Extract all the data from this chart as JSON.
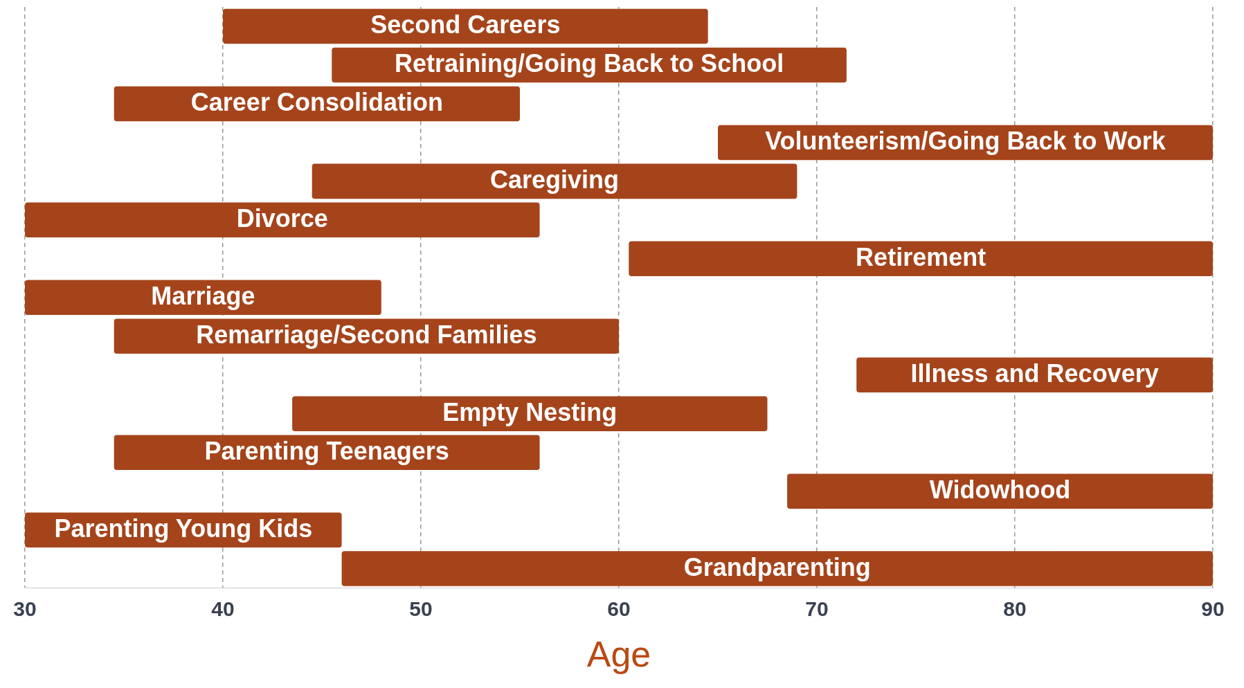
{
  "chart_data": {
    "type": "bar",
    "orientation": "horizontal",
    "xlabel": "Age",
    "categories": [
      "Second Careers",
      "Retraining/Going Back to School",
      "Career Consolidation",
      "Volunteerism/Going Back to Work",
      "Caregiving",
      "Divorce",
      "Retirement",
      "Marriage",
      "Remarriage/Second Families",
      "Illness and Recovery",
      "Empty Nesting",
      "Parenting Teenagers",
      "Widowhood",
      "Parenting Young Kids",
      "Grandparenting"
    ],
    "base": [
      40,
      45.5,
      34.5,
      65,
      44.5,
      30,
      60.5,
      30,
      34.5,
      72,
      43.5,
      34.5,
      68.5,
      30,
      46
    ],
    "values": [
      24.5,
      26,
      20.5,
      25,
      24.5,
      26,
      29.5,
      18,
      25.5,
      18,
      24,
      21.5,
      21.5,
      16,
      44
    ],
    "color": "#a5441b",
    "xlim": [
      30,
      90
    ],
    "xticks": [
      30,
      40,
      50,
      60,
      70,
      80,
      90
    ],
    "grid": "x",
    "tick_labels": "x"
  }
}
